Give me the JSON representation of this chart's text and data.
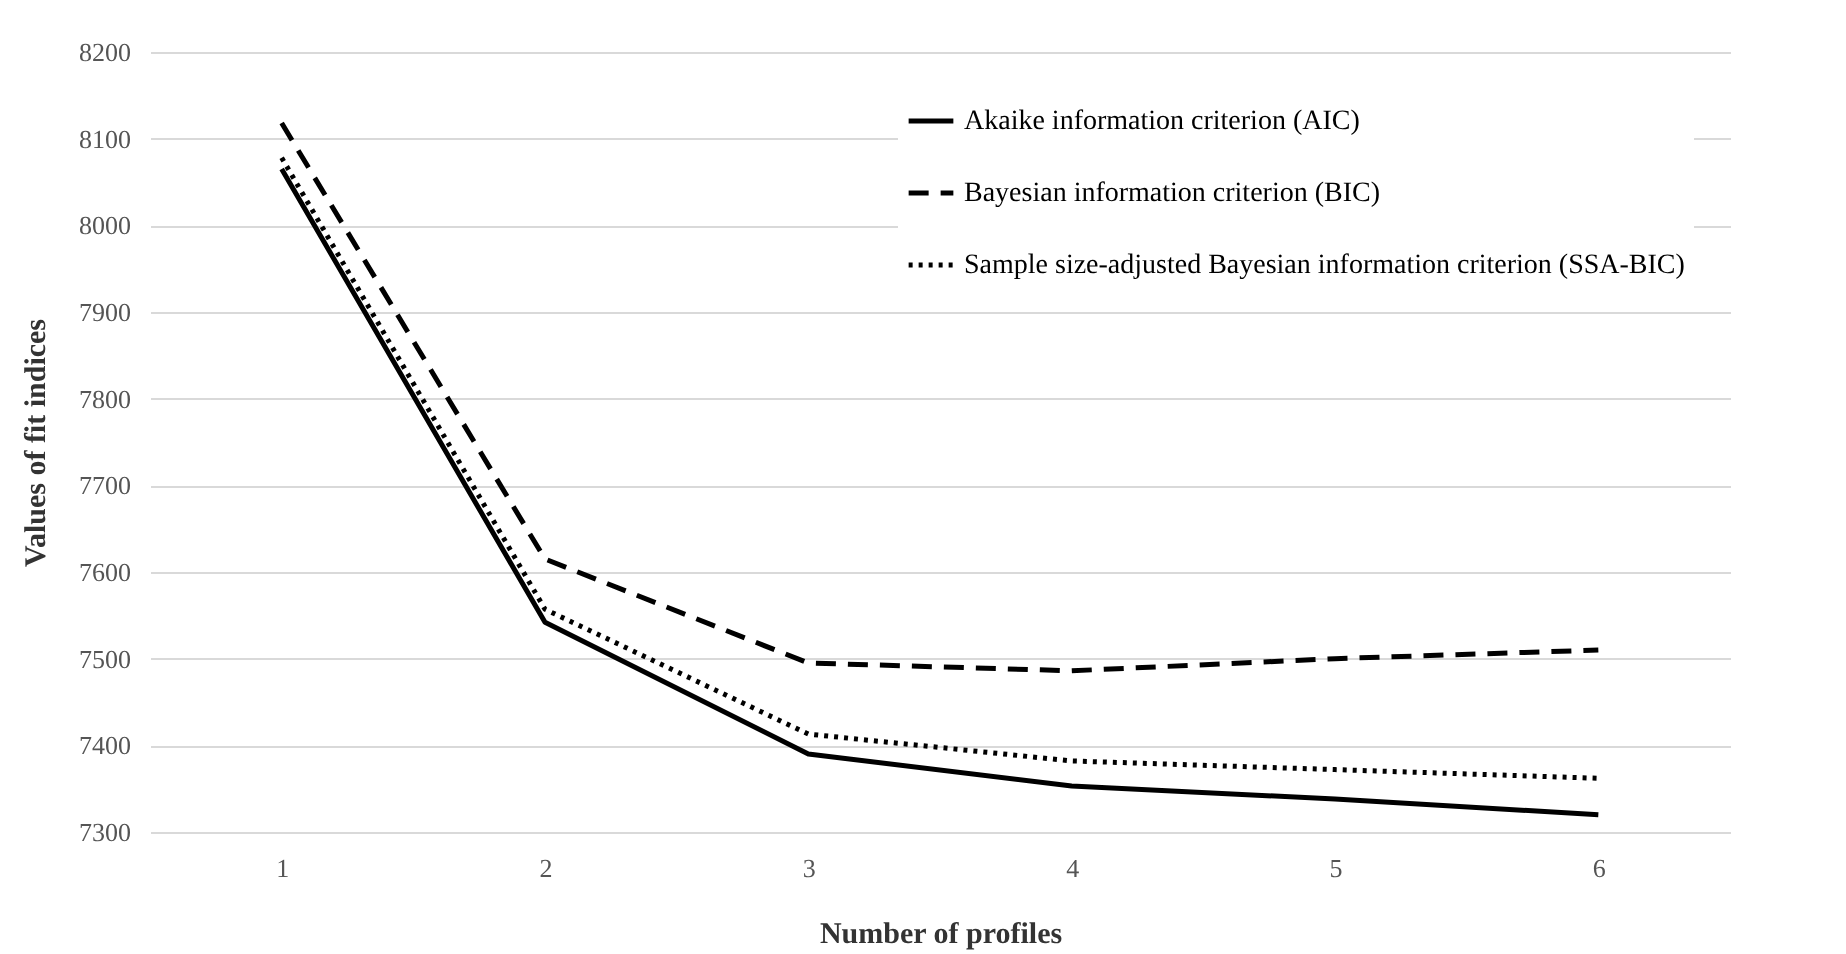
{
  "chart_data": {
    "type": "line",
    "xlabel": "Number of profiles",
    "ylabel": "Values of fit indices",
    "categories": [
      "1",
      "2",
      "3",
      "4",
      "5",
      "6"
    ],
    "series": [
      {
        "name": "Akaike information criterion (AIC)",
        "color": "#000000",
        "line_style": "solid",
        "values": [
          8065,
          7542,
          7390,
          7353,
          7338,
          7320
        ]
      },
      {
        "name": "Bayesian information criterion (BIC)",
        "color": "#000000",
        "line_style": "dashed",
        "values": [
          8118,
          7615,
          7495,
          7486,
          7500,
          7510
        ]
      },
      {
        "name": "Sample size-adjusted Bayesian information criterion (SSA-BIC)",
        "color": "#000000",
        "line_style": "dotted",
        "values": [
          8078,
          7557,
          7413,
          7382,
          7372,
          7362
        ]
      }
    ],
    "ylim": [
      7300,
      8200
    ],
    "yticks": [
      7300,
      7400,
      7500,
      7600,
      7700,
      7800,
      7900,
      8000,
      8100,
      8200
    ],
    "grid": "y",
    "legend": "top right",
    "marker": "none"
  }
}
